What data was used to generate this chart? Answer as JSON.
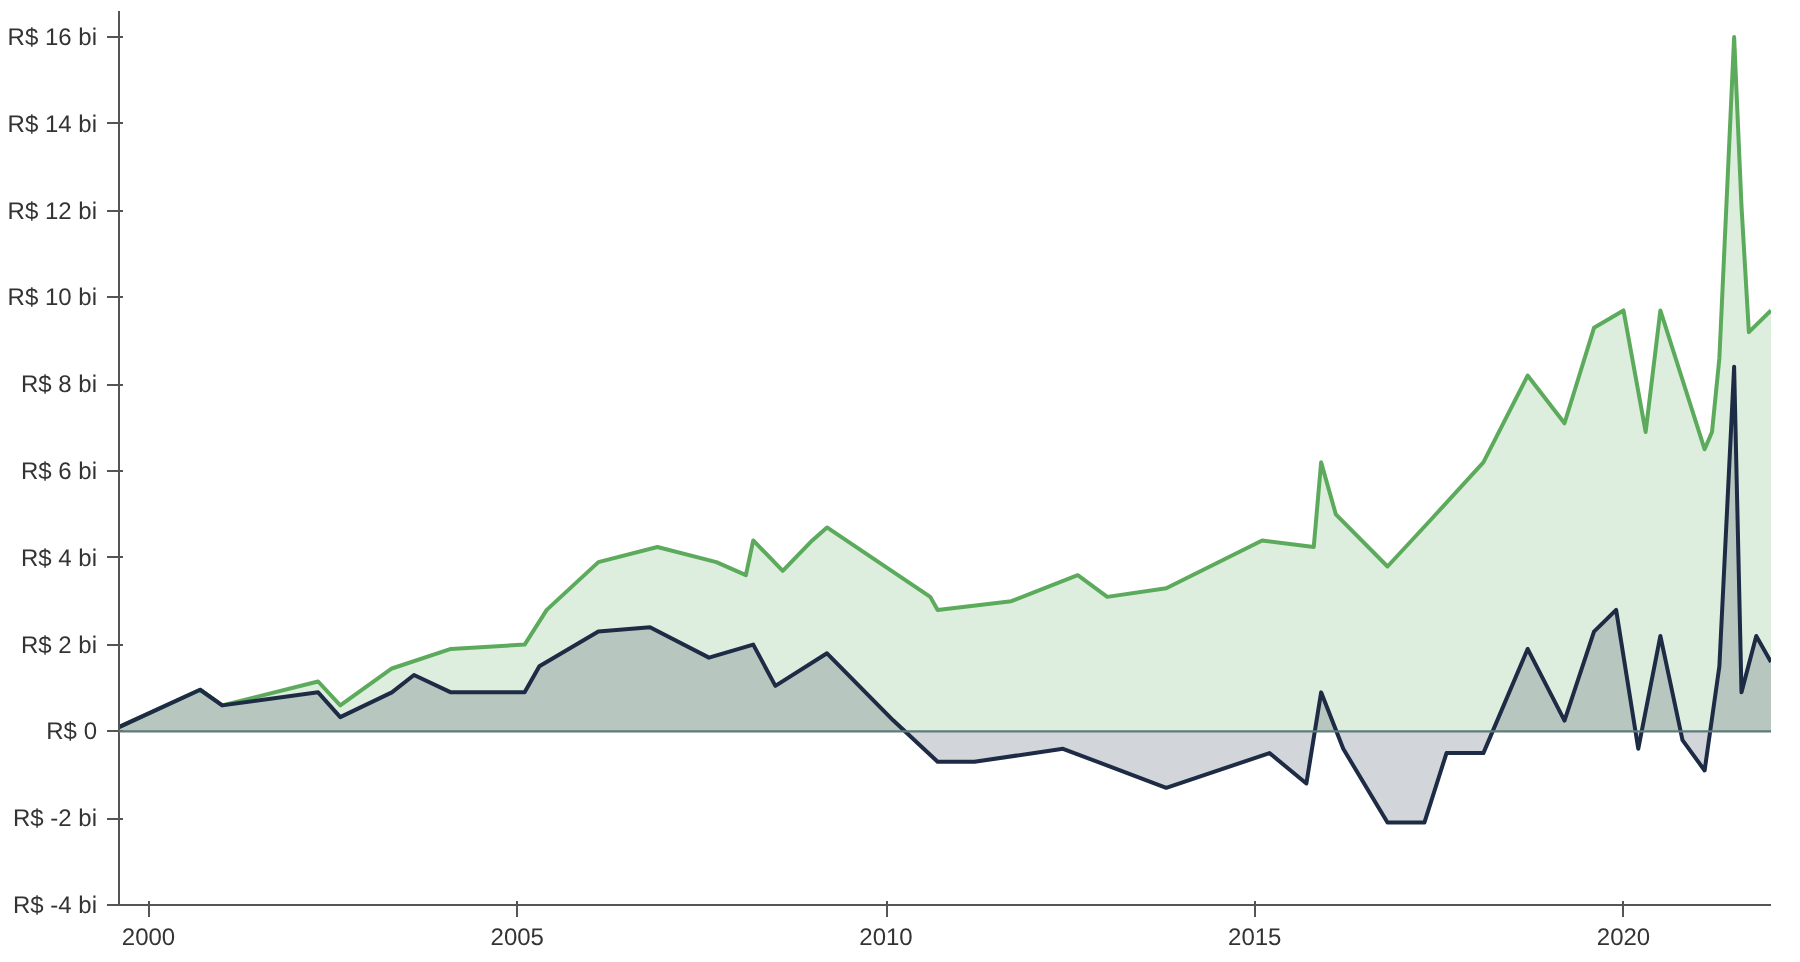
{
  "chart_data": {
    "type": "area",
    "xlim": [
      1999.6,
      2022.0
    ],
    "xticks": [
      2000,
      2005,
      2010,
      2015,
      2020
    ],
    "ylim": [
      -4,
      16.6
    ],
    "yticks": [
      {
        "value": -4,
        "label": "R$ -4 bi"
      },
      {
        "value": -2,
        "label": "R$ -2 bi"
      },
      {
        "value": 0,
        "label": "R$ 0"
      },
      {
        "value": 2,
        "label": "R$ 2 bi"
      },
      {
        "value": 4,
        "label": "R$ 4 bi"
      },
      {
        "value": 6,
        "label": "R$ 6 bi"
      },
      {
        "value": 8,
        "label": "R$ 8 bi"
      },
      {
        "value": 10,
        "label": "R$ 10 bi"
      },
      {
        "value": 12,
        "label": "R$ 12 bi"
      },
      {
        "value": 14,
        "label": "R$ 14 bi"
      },
      {
        "value": 16,
        "label": "R$ 16 bi"
      }
    ],
    "grid": false,
    "ref_lines": [
      {
        "axis": "y",
        "value": 0,
        "color": "#5f7a7a"
      }
    ],
    "series": [
      {
        "color": "#5cab5c",
        "x": [
          1999.6,
          2000.7,
          2001.0,
          2002.3,
          2002.6,
          2003.3,
          2004.1,
          2005.1,
          2005.4,
          2006.1,
          2006.9,
          2007.7,
          2008.1,
          2008.2,
          2008.6,
          2009.0,
          2009.2,
          2009.9,
          2010.6,
          2010.7,
          2011.7,
          2012.6,
          2013.0,
          2013.8,
          2015.1,
          2015.8,
          2015.9,
          2016.1,
          2016.8,
          2017.4,
          2018.1,
          2018.7,
          2019.2,
          2019.6,
          2020.0,
          2020.3,
          2020.5,
          2021.1,
          2021.2,
          2021.3,
          2021.5,
          2021.6,
          2021.7,
          2022.0
        ],
        "values": [
          0.1,
          0.96,
          0.6,
          1.15,
          0.6,
          1.45,
          1.9,
          2.0,
          2.8,
          3.9,
          4.25,
          3.9,
          3.6,
          4.4,
          3.7,
          4.4,
          4.7,
          3.9,
          3.1,
          2.8,
          3.0,
          3.6,
          3.1,
          3.3,
          4.4,
          4.25,
          6.2,
          5.0,
          3.8,
          4.9,
          6.2,
          8.2,
          7.1,
          9.3,
          9.7,
          6.9,
          9.7,
          6.5,
          6.9,
          8.6,
          16.0,
          12.1,
          9.2,
          9.7
        ]
      },
      {
        "color": "#1e2b45",
        "x": [
          1999.6,
          2000.7,
          2001.0,
          2002.3,
          2002.6,
          2003.3,
          2003.6,
          2004.1,
          2005.1,
          2005.3,
          2006.1,
          2006.8,
          2007.6,
          2008.2,
          2008.5,
          2009.2,
          2010.1,
          2010.7,
          2011.2,
          2012.4,
          2013.8,
          2015.2,
          2015.7,
          2015.9,
          2016.2,
          2016.8,
          2017.3,
          2017.6,
          2018.1,
          2018.7,
          2019.2,
          2019.6,
          2019.9,
          2020.2,
          2020.5,
          2020.8,
          2021.1,
          2021.3,
          2021.5,
          2021.6,
          2021.8,
          2022.0
        ],
        "values": [
          0.1,
          0.96,
          0.6,
          0.9,
          0.33,
          0.9,
          1.3,
          0.9,
          0.9,
          1.5,
          2.3,
          2.4,
          1.7,
          2.0,
          1.05,
          1.8,
          0.25,
          -0.7,
          -0.7,
          -0.4,
          -1.3,
          -0.5,
          -1.2,
          0.9,
          -0.4,
          -2.1,
          -2.1,
          -0.5,
          -0.5,
          1.9,
          0.25,
          2.3,
          2.8,
          -0.4,
          2.2,
          -0.2,
          -0.9,
          1.5,
          8.4,
          0.9,
          2.2,
          1.6
        ]
      }
    ]
  }
}
